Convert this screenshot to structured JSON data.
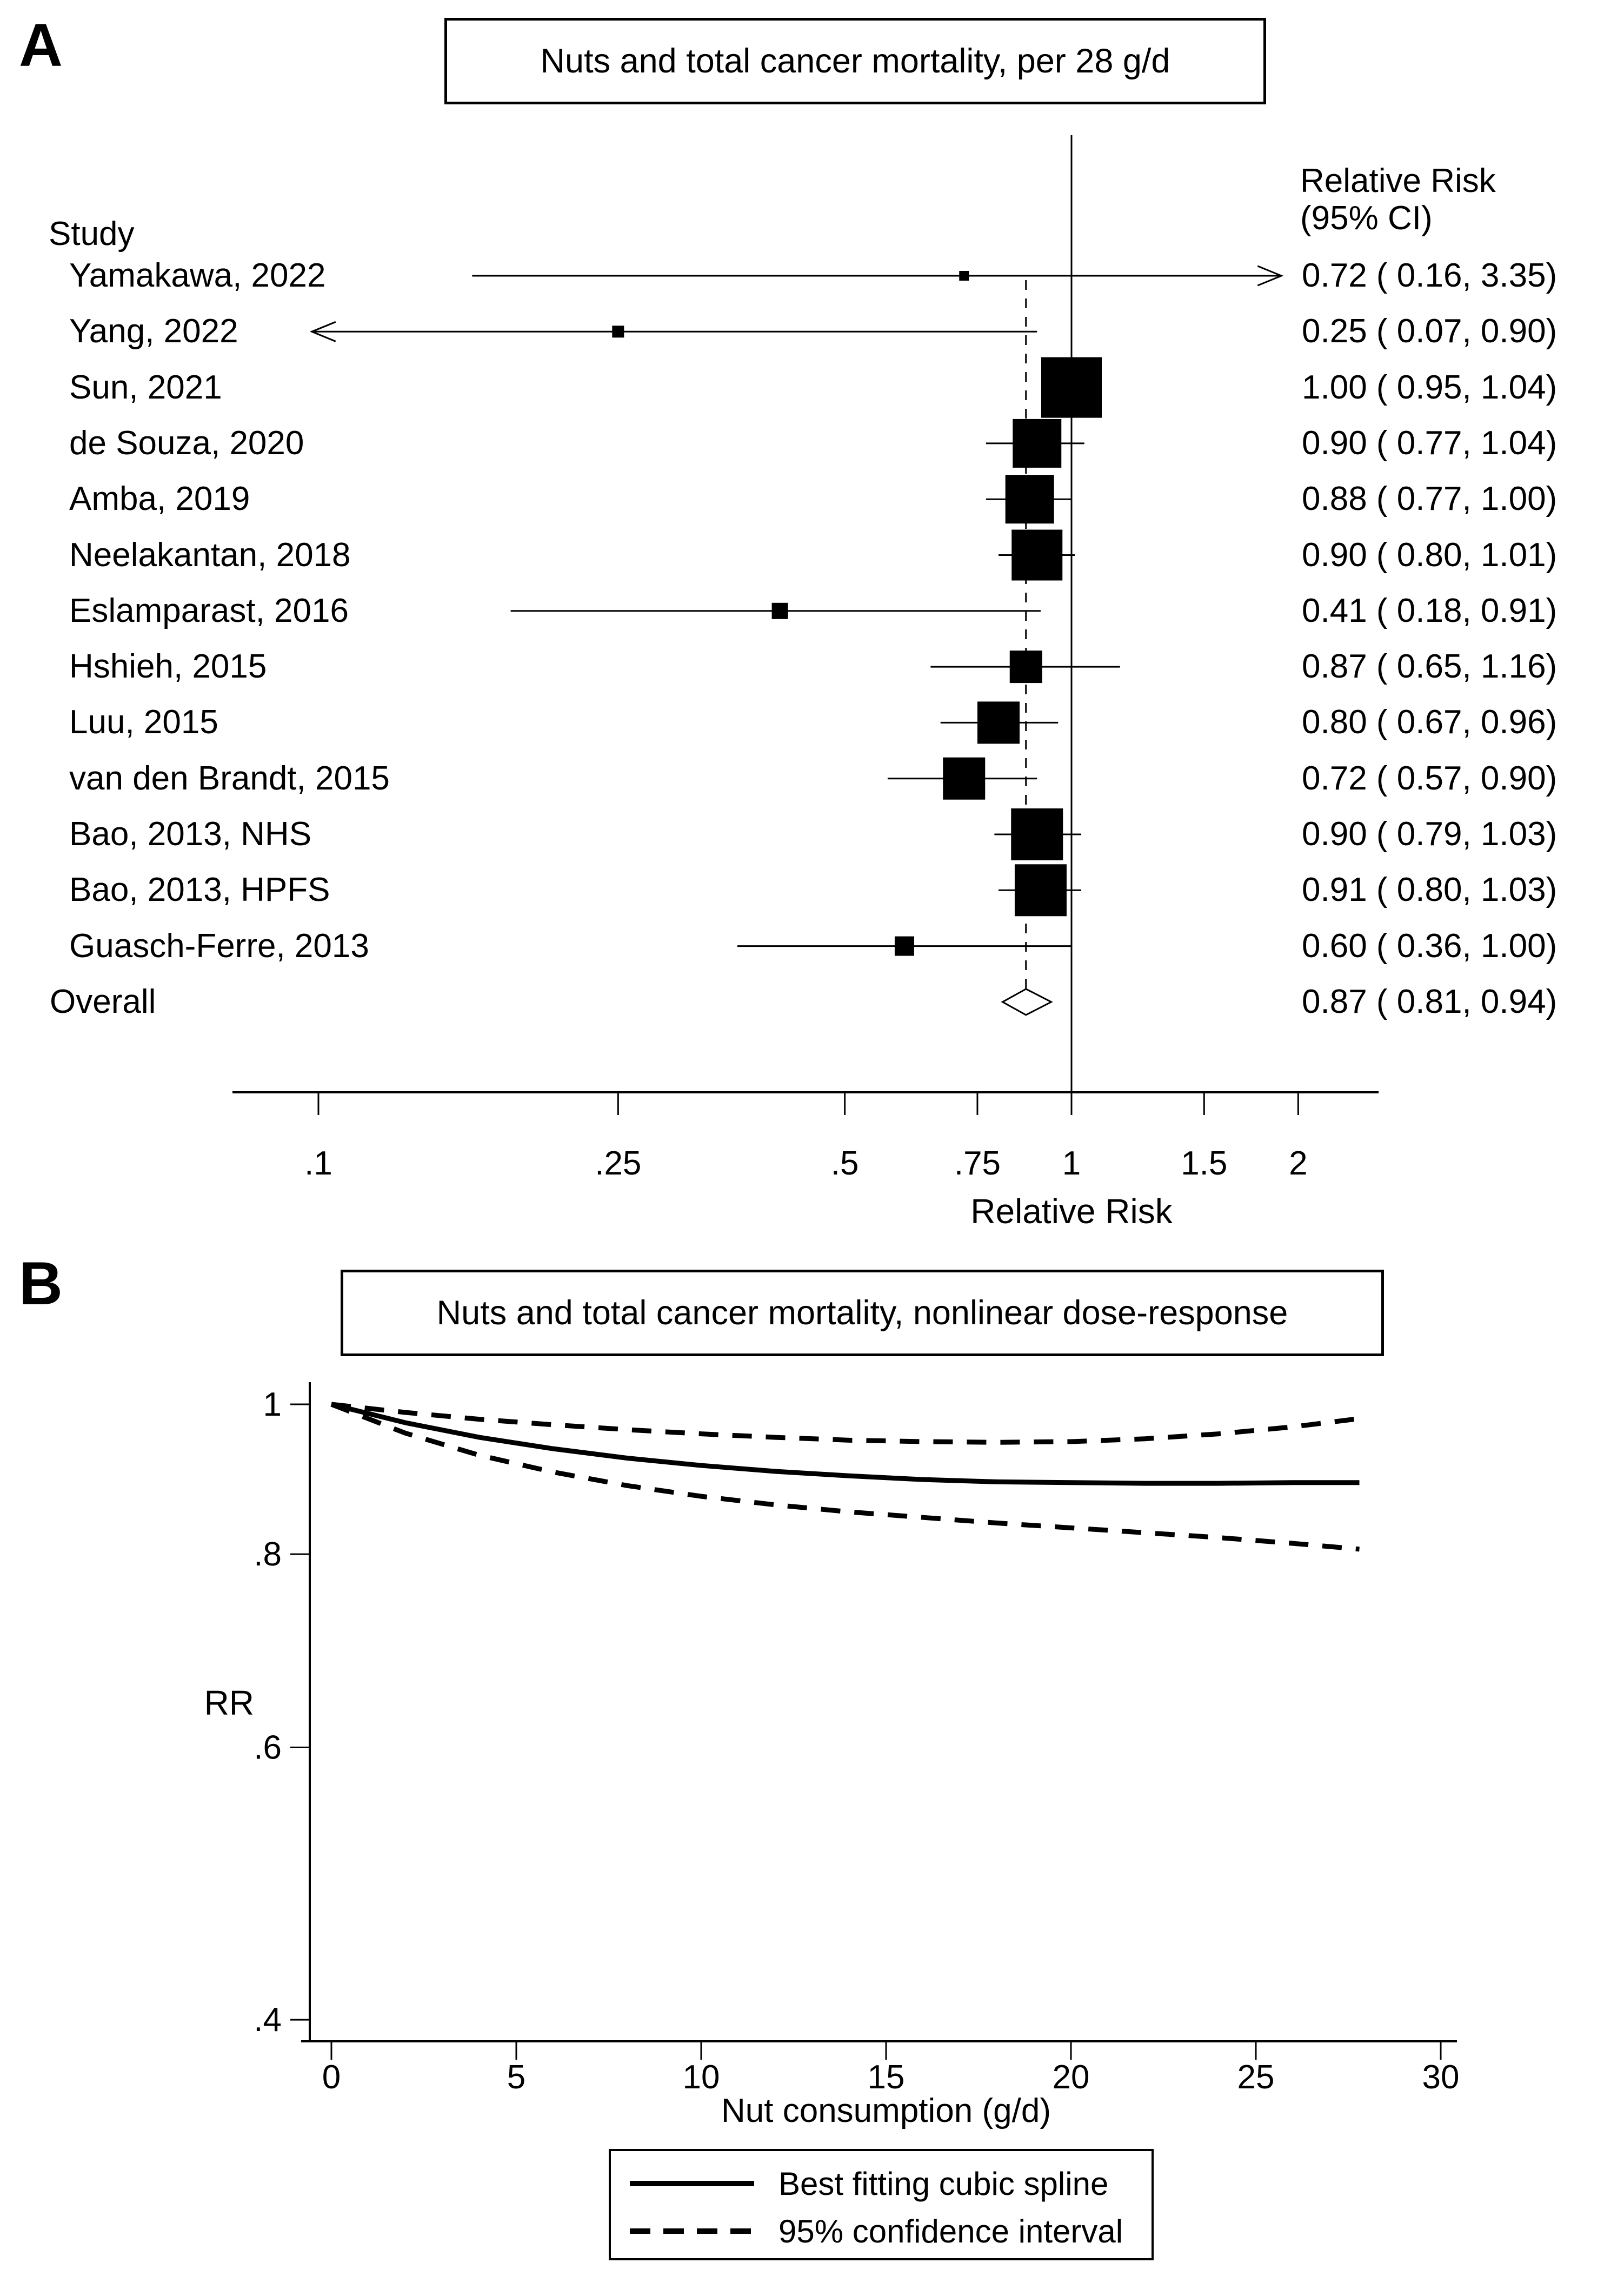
{
  "figure": {
    "panelA_label": "A",
    "panelB_label": "B",
    "colors": {
      "ink": "#000000",
      "paper": "#ffffff"
    }
  },
  "chart_data": [
    {
      "type": "forest",
      "title": "Nuts and total cancer mortality, per 28 g/d",
      "column_headers": {
        "study": "Study",
        "rr_line1": "Relative Risk",
        "rr_line2": "(95% CI)"
      },
      "x_axis_label": "Relative Risk",
      "x_scale": "log",
      "x_ticks": [
        0.1,
        0.25,
        0.5,
        0.75,
        1,
        1.5,
        2
      ],
      "x_tick_labels": [
        ".1",
        ".25",
        ".5",
        ".75",
        "1",
        "1.5",
        "2"
      ],
      "null_line": 1.0,
      "pooled_dashed_line": 0.87,
      "studies": [
        {
          "name": "Yamakawa, 2022",
          "rr": 0.72,
          "ci_low": 0.16,
          "ci_high": 3.35,
          "label": "0.72 ( 0.16, 3.35)",
          "marker_size": 18,
          "arrow": "right",
          "arrow_at": 1.9
        },
        {
          "name": "Yang, 2022",
          "rr": 0.25,
          "ci_low": 0.07,
          "ci_high": 0.9,
          "label": "0.25 ( 0.07, 0.90)",
          "marker_size": 22,
          "arrow": "left",
          "arrow_at": 0.098
        },
        {
          "name": "Sun, 2021",
          "rr": 1.0,
          "ci_low": 0.95,
          "ci_high": 1.04,
          "label": "1.00 ( 0.95, 1.04)",
          "marker_size": 112,
          "arrow": null,
          "arrow_at": null
        },
        {
          "name": "de Souza, 2020",
          "rr": 0.9,
          "ci_low": 0.77,
          "ci_high": 1.04,
          "label": "0.90 ( 0.77, 1.04)",
          "marker_size": 90,
          "arrow": null,
          "arrow_at": null
        },
        {
          "name": "Amba, 2019",
          "rr": 0.88,
          "ci_low": 0.77,
          "ci_high": 1.0,
          "label": "0.88 ( 0.77, 1.00)",
          "marker_size": 90,
          "arrow": null,
          "arrow_at": null
        },
        {
          "name": "Neelakantan, 2018",
          "rr": 0.9,
          "ci_low": 0.8,
          "ci_high": 1.01,
          "label": "0.90 ( 0.80, 1.01)",
          "marker_size": 94,
          "arrow": null,
          "arrow_at": null
        },
        {
          "name": "Eslamparast, 2016",
          "rr": 0.41,
          "ci_low": 0.18,
          "ci_high": 0.91,
          "label": "0.41 ( 0.18, 0.91)",
          "marker_size": 30,
          "arrow": null,
          "arrow_at": null
        },
        {
          "name": "Hshieh, 2015",
          "rr": 0.87,
          "ci_low": 0.65,
          "ci_high": 1.16,
          "label": "0.87 ( 0.65, 1.16)",
          "marker_size": 60,
          "arrow": null,
          "arrow_at": null
        },
        {
          "name": "Luu, 2015",
          "rr": 0.8,
          "ci_low": 0.67,
          "ci_high": 0.96,
          "label": "0.80 ( 0.67, 0.96)",
          "marker_size": 78,
          "arrow": null,
          "arrow_at": null
        },
        {
          "name": "van den Brandt, 2015",
          "rr": 0.72,
          "ci_low": 0.57,
          "ci_high": 0.9,
          "label": "0.72 ( 0.57, 0.90)",
          "marker_size": 78,
          "arrow": null,
          "arrow_at": null
        },
        {
          "name": "Bao, 2013, NHS",
          "rr": 0.9,
          "ci_low": 0.79,
          "ci_high": 1.03,
          "label": "0.90 ( 0.79, 1.03)",
          "marker_size": 96,
          "arrow": null,
          "arrow_at": null
        },
        {
          "name": "Bao, 2013, HPFS",
          "rr": 0.91,
          "ci_low": 0.8,
          "ci_high": 1.03,
          "label": "0.91 ( 0.80, 1.03)",
          "marker_size": 96,
          "arrow": null,
          "arrow_at": null
        },
        {
          "name": "Guasch-Ferre, 2013",
          "rr": 0.6,
          "ci_low": 0.36,
          "ci_high": 1.0,
          "label": "0.60 ( 0.36, 1.00)",
          "marker_size": 36,
          "arrow": null,
          "arrow_at": null
        }
      ],
      "overall": {
        "name": "Overall",
        "rr": 0.87,
        "ci_low": 0.81,
        "ci_high": 0.94,
        "label": "0.87 ( 0.81, 0.94)"
      }
    },
    {
      "type": "line",
      "title": "Nuts and total cancer mortality, nonlinear dose-response",
      "xlabel": "Nut consumption (g/d)",
      "ylabel": "RR",
      "y_scale": "log",
      "xlim": [
        0,
        30
      ],
      "x_ticks": [
        0,
        5,
        10,
        15,
        20,
        25,
        30
      ],
      "x_tick_labels": [
        "0",
        "5",
        "10",
        "15",
        "20",
        "25",
        "30"
      ],
      "y_ticks": [
        1,
        0.8,
        0.6,
        0.4
      ],
      "y_tick_labels": [
        "1",
        ".8",
        ".6",
        ".4"
      ],
      "series": [
        {
          "name": "Best fitting cubic spline",
          "style": "solid",
          "x": [
            0,
            2,
            4,
            6,
            8,
            10,
            12,
            14,
            16,
            18,
            20,
            22,
            24,
            26,
            27.8
          ],
          "y": [
            1.0,
            0.973,
            0.952,
            0.936,
            0.923,
            0.913,
            0.905,
            0.899,
            0.894,
            0.891,
            0.89,
            0.889,
            0.889,
            0.89,
            0.89
          ]
        },
        {
          "name": "95% confidence interval upper",
          "style": "dashed",
          "x": [
            0,
            2,
            4,
            6,
            8,
            10,
            12,
            14,
            16,
            18,
            20,
            22,
            24,
            26,
            27.8
          ],
          "y": [
            1.0,
            0.988,
            0.978,
            0.97,
            0.963,
            0.957,
            0.952,
            0.948,
            0.946,
            0.945,
            0.946,
            0.95,
            0.957,
            0.967,
            0.979
          ]
        },
        {
          "name": "95% confidence interval lower",
          "style": "dashed",
          "x": [
            0,
            2,
            4,
            6,
            8,
            10,
            12,
            14,
            16,
            18,
            20,
            22,
            24,
            26,
            27.8
          ],
          "y": [
            1.0,
            0.958,
            0.927,
            0.904,
            0.886,
            0.872,
            0.861,
            0.852,
            0.845,
            0.838,
            0.832,
            0.826,
            0.82,
            0.813,
            0.806
          ]
        }
      ],
      "legend": [
        {
          "style": "solid",
          "label": "Best fitting cubic spline"
        },
        {
          "style": "dashed",
          "label": "95% confidence interval"
        }
      ],
      "legend_position": "bottom-center"
    }
  ]
}
